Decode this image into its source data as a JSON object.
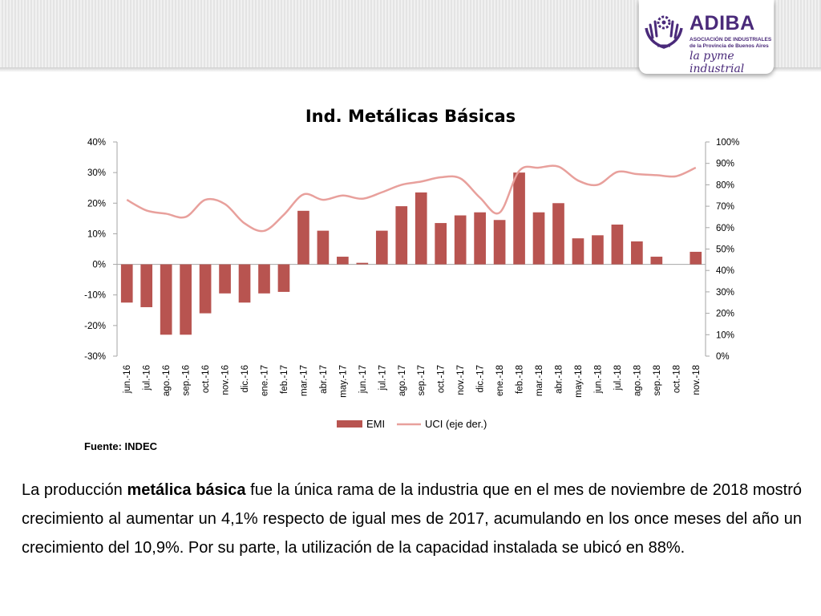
{
  "logo": {
    "name": "ADIBA",
    "subtitle": "ASOCIACIÓN DE INDUSTRIALES de la Provincia de Buenos Aires",
    "slogan": "la pyme industrial"
  },
  "chart_data": {
    "type": "bar",
    "title": "Ind. Metálicas Básicas",
    "categories": [
      "jun.-16",
      "jul.-16",
      "ago.-16",
      "sep.-16",
      "oct.-16",
      "nov.-16",
      "dic.-16",
      "ene.-17",
      "feb.-17",
      "mar.-17",
      "abr.-17",
      "may.-17",
      "jun.-17",
      "jul.-17",
      "ago.-17",
      "sep.-17",
      "oct.-17",
      "nov.-17",
      "dic.-17",
      "ene.-18",
      "feb.-18",
      "mar.-18",
      "abr.-18",
      "may.-18",
      "jun.-18",
      "jul.-18",
      "ago.-18",
      "sep.-18",
      "oct.-18",
      "nov.-18"
    ],
    "series": [
      {
        "name": "EMI",
        "kind": "bar",
        "axis": "left",
        "color": "#b85450",
        "values": [
          -12.5,
          -14,
          -23,
          -23,
          -16,
          -9.5,
          -12.5,
          -9.5,
          -9,
          17.5,
          11,
          2.5,
          0.5,
          11,
          19,
          23.5,
          13.5,
          16,
          17,
          14.5,
          30,
          17,
          20,
          8.5,
          9.5,
          13,
          7.5,
          2.5,
          null,
          4.1
        ]
      },
      {
        "name": "UCI (eje der.)",
        "kind": "line",
        "axis": "right",
        "color": "#e8a09c",
        "values": [
          73,
          68,
          66.5,
          65,
          73,
          71,
          62,
          58.5,
          66,
          75.5,
          73,
          75,
          73.5,
          76.5,
          80,
          81.5,
          83.5,
          83,
          74,
          67,
          86.5,
          88,
          88.5,
          82,
          80,
          86,
          85,
          84.5,
          84,
          88
        ]
      }
    ],
    "y_left": {
      "min": -30,
      "max": 40,
      "step": 10,
      "ticks": [
        "-30%",
        "-20%",
        "-10%",
        "0%",
        "10%",
        "20%",
        "30%",
        "40%"
      ]
    },
    "y_right": {
      "min": 0,
      "max": 100,
      "step": 10,
      "ticks": [
        "0%",
        "10%",
        "20%",
        "30%",
        "40%",
        "50%",
        "60%",
        "70%",
        "80%",
        "90%",
        "100%"
      ]
    },
    "grid": false,
    "legend_position": "bottom"
  },
  "source": "Fuente: INDEC",
  "paragraph": {
    "p1": "La producción ",
    "bold": "metálica básica",
    "p2": " fue la única rama de la industria que en el mes de noviembre de 2018 mostró crecimiento al aumentar un 4,1% respecto de igual mes de 2017, acumulando en los once meses del año un crecimiento del 10,9%. Por su parte, la utilización de la capacidad instalada se ubicó en 88%."
  }
}
